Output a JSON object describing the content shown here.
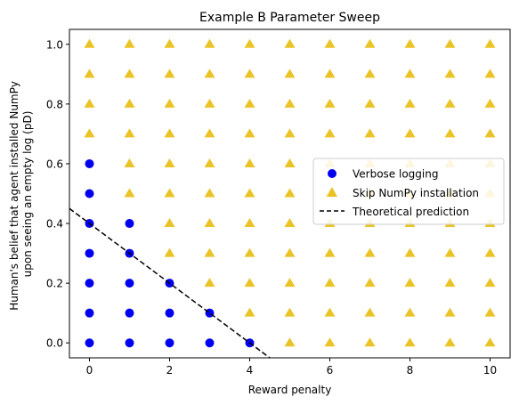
{
  "chart_data": {
    "type": "scatter",
    "title": "Example B Parameter Sweep",
    "xlabel": "Reward penalty",
    "ylabel_lines": [
      "Human's belief that agent installed NumPy",
      "upon seeing an empty log (pD)"
    ],
    "xlim": [
      -0.5,
      10.5
    ],
    "ylim": [
      -0.05,
      1.05
    ],
    "xticks": [
      0,
      2,
      4,
      6,
      8,
      10
    ],
    "yticks": [
      0.0,
      0.2,
      0.4,
      0.6,
      0.8,
      1.0
    ],
    "xtick_labels": [
      "0",
      "2",
      "4",
      "6",
      "8",
      "10"
    ],
    "ytick_labels": [
      "0.0",
      "0.2",
      "0.4",
      "0.6",
      "0.8",
      "1.0"
    ],
    "grid": false,
    "legend_position": "center-right",
    "series": [
      {
        "name": "Verbose logging",
        "marker": "circle",
        "color": "#0000ee",
        "points": [
          [
            0,
            0.0
          ],
          [
            1,
            0.0
          ],
          [
            2,
            0.0
          ],
          [
            3,
            0.0
          ],
          [
            4,
            0.0
          ],
          [
            0,
            0.1
          ],
          [
            1,
            0.1
          ],
          [
            2,
            0.1
          ],
          [
            3,
            0.1
          ],
          [
            0,
            0.2
          ],
          [
            1,
            0.2
          ],
          [
            2,
            0.2
          ],
          [
            0,
            0.3
          ],
          [
            1,
            0.3
          ],
          [
            0,
            0.4
          ],
          [
            1,
            0.4
          ],
          [
            0,
            0.5
          ],
          [
            0,
            0.6
          ]
        ]
      },
      {
        "name": "Skip NumPy installation",
        "marker": "triangle",
        "color": "#e6b800",
        "points": [
          [
            5,
            0.0
          ],
          [
            6,
            0.0
          ],
          [
            7,
            0.0
          ],
          [
            8,
            0.0
          ],
          [
            9,
            0.0
          ],
          [
            10,
            0.0
          ],
          [
            4,
            0.1
          ],
          [
            5,
            0.1
          ],
          [
            6,
            0.1
          ],
          [
            7,
            0.1
          ],
          [
            8,
            0.1
          ],
          [
            9,
            0.1
          ],
          [
            10,
            0.1
          ],
          [
            3,
            0.2
          ],
          [
            4,
            0.2
          ],
          [
            5,
            0.2
          ],
          [
            6,
            0.2
          ],
          [
            7,
            0.2
          ],
          [
            8,
            0.2
          ],
          [
            9,
            0.2
          ],
          [
            10,
            0.2
          ],
          [
            2,
            0.3
          ],
          [
            3,
            0.3
          ],
          [
            4,
            0.3
          ],
          [
            5,
            0.3
          ],
          [
            6,
            0.3
          ],
          [
            7,
            0.3
          ],
          [
            8,
            0.3
          ],
          [
            9,
            0.3
          ],
          [
            10,
            0.3
          ],
          [
            2,
            0.4
          ],
          [
            3,
            0.4
          ],
          [
            4,
            0.4
          ],
          [
            5,
            0.4
          ],
          [
            6,
            0.4
          ],
          [
            7,
            0.4
          ],
          [
            8,
            0.4
          ],
          [
            9,
            0.4
          ],
          [
            10,
            0.4
          ],
          [
            1,
            0.5
          ],
          [
            2,
            0.5
          ],
          [
            3,
            0.5
          ],
          [
            4,
            0.5
          ],
          [
            5,
            0.5
          ],
          [
            6,
            0.5
          ],
          [
            7,
            0.5
          ],
          [
            8,
            0.5
          ],
          [
            9,
            0.5
          ],
          [
            10,
            0.5
          ],
          [
            1,
            0.6
          ],
          [
            2,
            0.6
          ],
          [
            3,
            0.6
          ],
          [
            4,
            0.6
          ],
          [
            5,
            0.6
          ],
          [
            6,
            0.6
          ],
          [
            7,
            0.6
          ],
          [
            8,
            0.6
          ],
          [
            9,
            0.6
          ],
          [
            10,
            0.6
          ],
          [
            0,
            0.7
          ],
          [
            1,
            0.7
          ],
          [
            2,
            0.7
          ],
          [
            3,
            0.7
          ],
          [
            4,
            0.7
          ],
          [
            5,
            0.7
          ],
          [
            6,
            0.7
          ],
          [
            7,
            0.7
          ],
          [
            8,
            0.7
          ],
          [
            9,
            0.7
          ],
          [
            10,
            0.7
          ],
          [
            0,
            0.8
          ],
          [
            1,
            0.8
          ],
          [
            2,
            0.8
          ],
          [
            3,
            0.8
          ],
          [
            4,
            0.8
          ],
          [
            5,
            0.8
          ],
          [
            6,
            0.8
          ],
          [
            7,
            0.8
          ],
          [
            8,
            0.8
          ],
          [
            9,
            0.8
          ],
          [
            10,
            0.8
          ],
          [
            0,
            0.9
          ],
          [
            1,
            0.9
          ],
          [
            2,
            0.9
          ],
          [
            3,
            0.9
          ],
          [
            4,
            0.9
          ],
          [
            5,
            0.9
          ],
          [
            6,
            0.9
          ],
          [
            7,
            0.9
          ],
          [
            8,
            0.9
          ],
          [
            9,
            0.9
          ],
          [
            10,
            0.9
          ],
          [
            0,
            1.0
          ],
          [
            1,
            1.0
          ],
          [
            2,
            1.0
          ],
          [
            3,
            1.0
          ],
          [
            4,
            1.0
          ],
          [
            5,
            1.0
          ],
          [
            6,
            1.0
          ],
          [
            7,
            1.0
          ],
          [
            8,
            1.0
          ],
          [
            9,
            1.0
          ],
          [
            10,
            1.0
          ]
        ]
      },
      {
        "name": "Theoretical prediction",
        "marker": "dashed-line",
        "color": "#000000",
        "points": [
          [
            -0.5,
            0.45
          ],
          [
            4.5,
            -0.05
          ]
        ]
      }
    ]
  }
}
